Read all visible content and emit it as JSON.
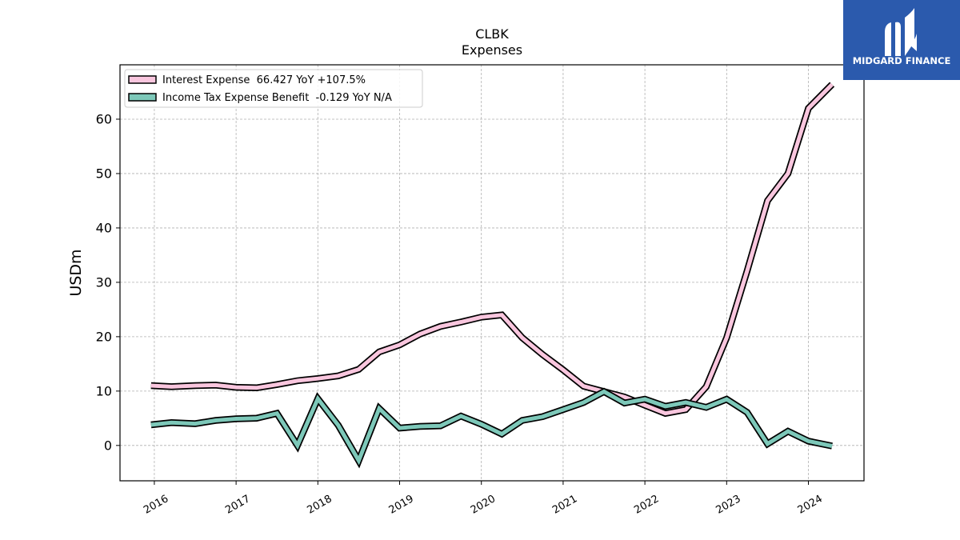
{
  "brand": {
    "name": "MIDGARD FINANCE"
  },
  "chart_data": {
    "type": "line",
    "title": "CLBK",
    "subtitle": "Expenses",
    "xlabel": "",
    "ylabel": "USDm",
    "ylim": [
      -6.5,
      70
    ],
    "yticks": [
      0,
      10,
      20,
      30,
      40,
      50,
      60
    ],
    "xlim": [
      2015.58,
      2024.68
    ],
    "xticks": [
      "2016",
      "2017",
      "2018",
      "2019",
      "2020",
      "2021",
      "2022",
      "2023",
      "2024"
    ],
    "grid": true,
    "legend_position": "top-left",
    "x": [
      2015.96,
      2016.21,
      2016.5,
      2016.75,
      2017.0,
      2017.25,
      2017.5,
      2017.75,
      2018.0,
      2018.25,
      2018.5,
      2018.75,
      2019.0,
      2019.25,
      2019.5,
      2019.75,
      2020.0,
      2020.25,
      2020.5,
      2020.75,
      2021.0,
      2021.25,
      2021.5,
      2021.75,
      2022.0,
      2022.25,
      2022.5,
      2022.75,
      2023.0,
      2023.25,
      2023.5,
      2023.75,
      2024.0,
      2024.29
    ],
    "series": [
      {
        "name": "Interest Expense  66.427 YoY +107.5%",
        "color": "#f9c6de",
        "values": [
          11.0,
          10.8,
          11.0,
          11.1,
          10.7,
          10.6,
          11.2,
          11.9,
          12.3,
          12.8,
          14.0,
          17.2,
          18.5,
          20.5,
          21.9,
          22.7,
          23.6,
          24.0,
          19.8,
          16.7,
          13.9,
          10.9,
          9.9,
          8.9,
          7.4,
          5.9,
          6.6,
          10.8,
          19.8,
          32.1,
          45.0,
          50.0,
          62.0,
          66.4
        ]
      },
      {
        "name": "Income Tax Expense Benefit  -0.129 YoY N/A",
        "color": "#7dc8b9",
        "values": [
          3.8,
          4.2,
          4.0,
          4.6,
          4.9,
          5.0,
          5.9,
          0.0,
          8.6,
          3.7,
          -2.8,
          6.8,
          3.2,
          3.5,
          3.6,
          5.4,
          3.9,
          2.1,
          4.6,
          5.3,
          6.6,
          7.9,
          9.9,
          7.8,
          8.5,
          7.2,
          7.9,
          7.0,
          8.5,
          6.1,
          0.3,
          2.6,
          0.8,
          -0.1
        ]
      }
    ]
  }
}
